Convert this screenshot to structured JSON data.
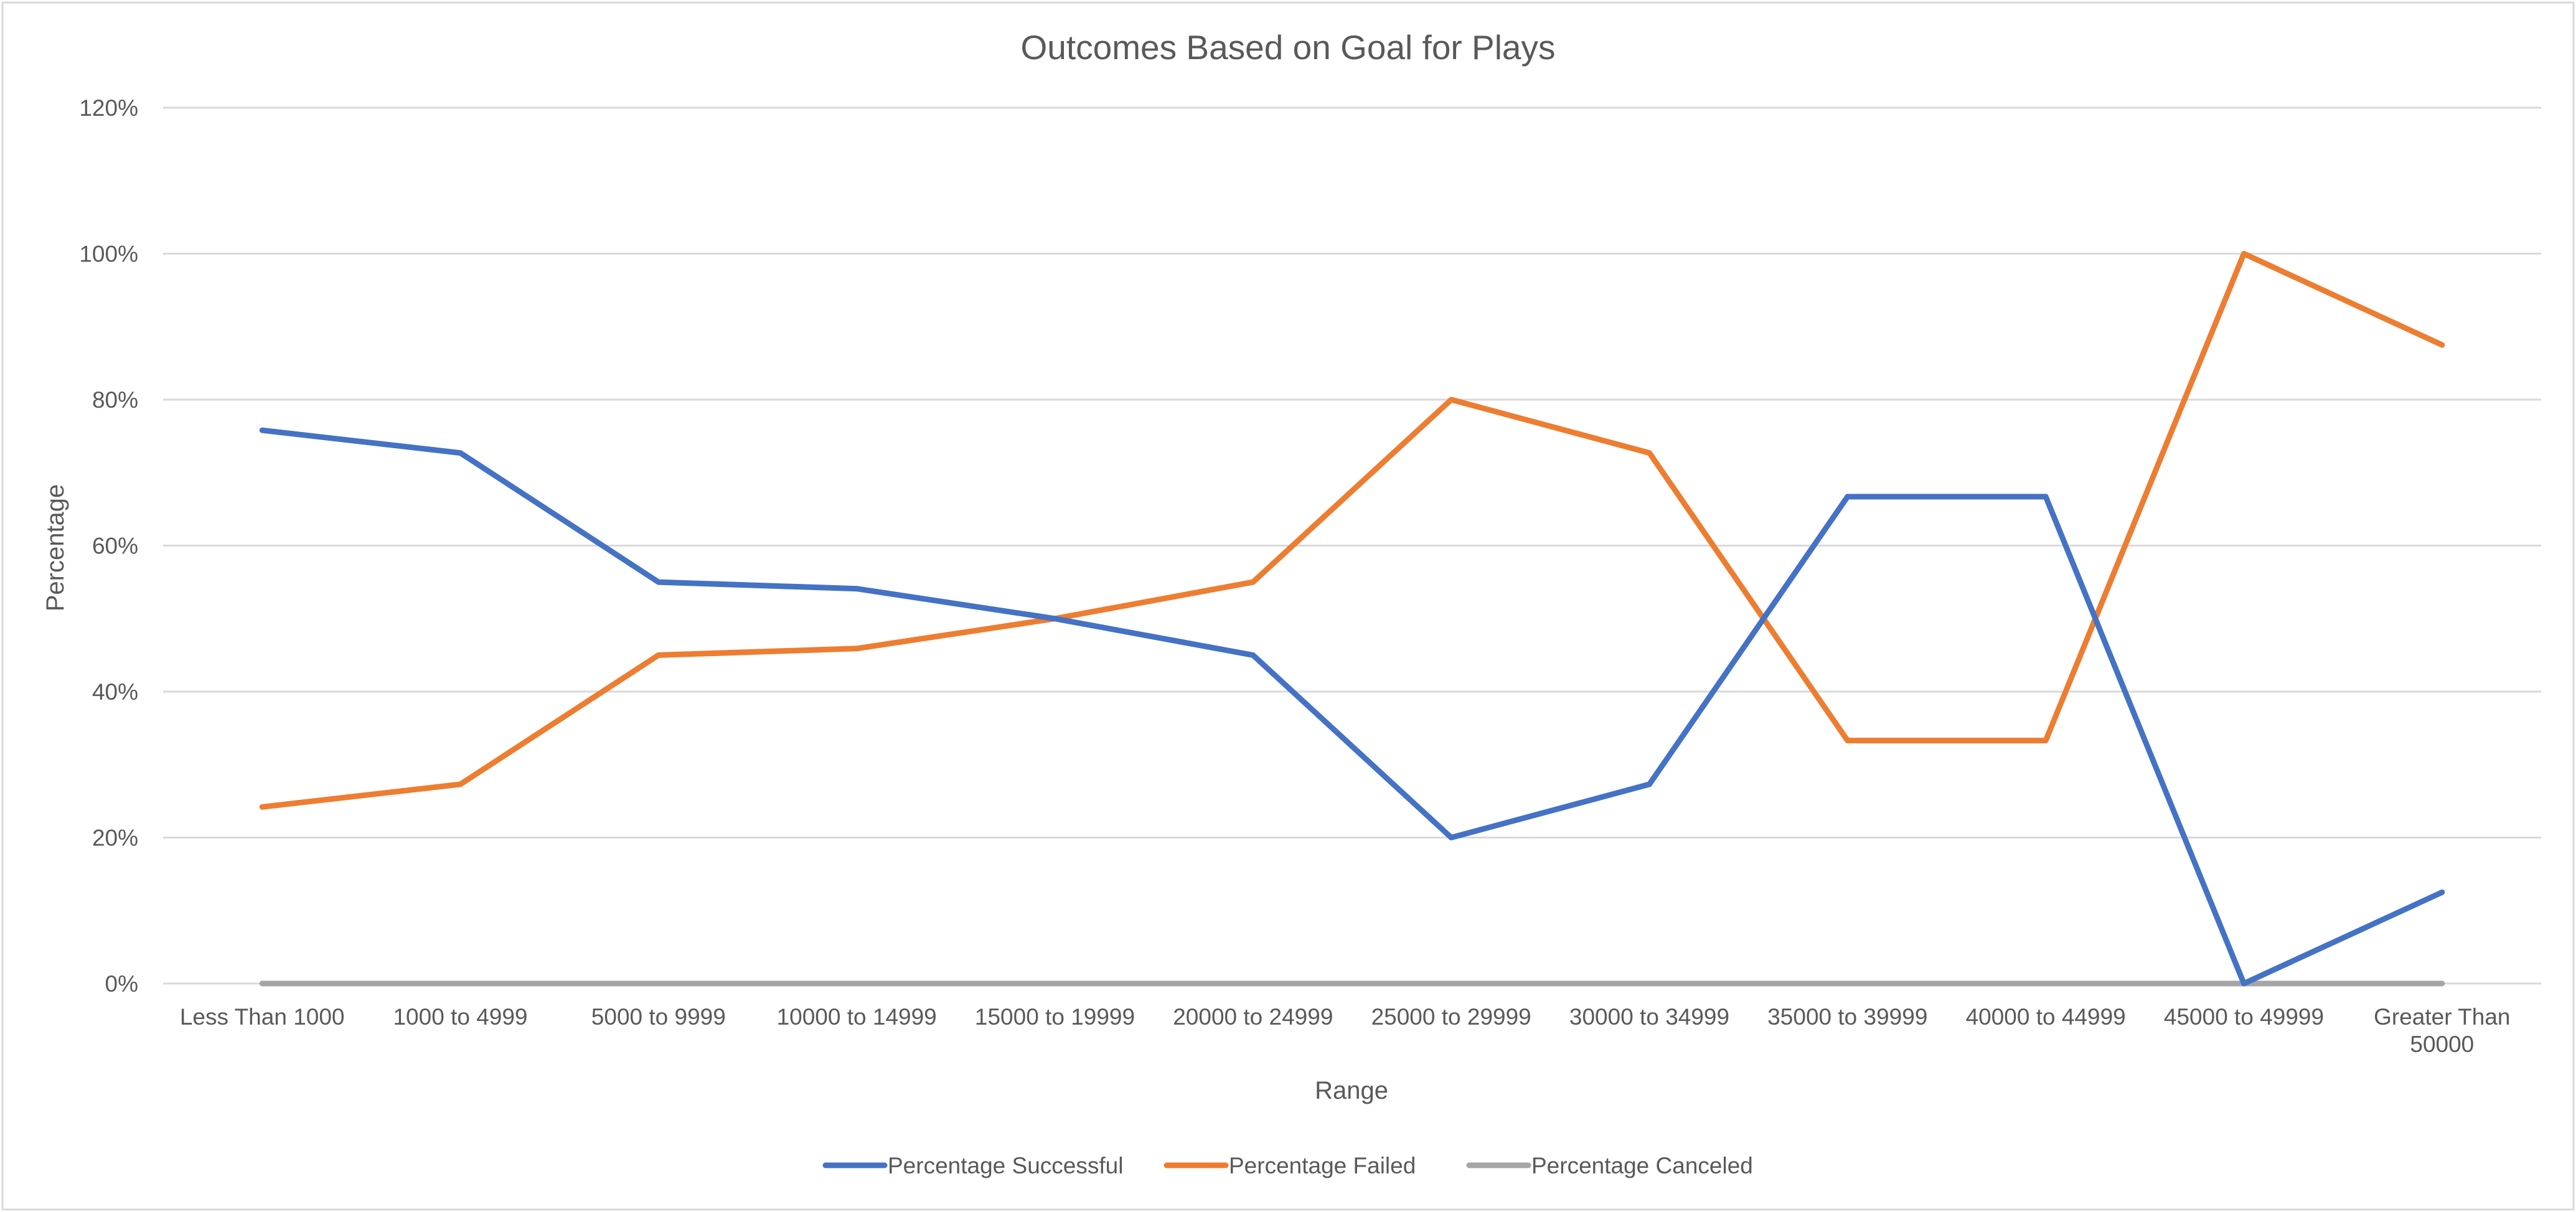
{
  "chart_data": {
    "type": "line",
    "title": "Outcomes Based on Goal for Plays",
    "xlabel": "Range",
    "ylabel": "Percentage",
    "ylim": [
      0,
      1.2
    ],
    "yticks": [
      0,
      0.2,
      0.4,
      0.6,
      0.8,
      1.0,
      1.2
    ],
    "ytick_labels": [
      "0%",
      "20%",
      "40%",
      "60%",
      "80%",
      "100%",
      "120%"
    ],
    "categories": [
      [
        "Less Than 1000"
      ],
      [
        "1000 to 4999"
      ],
      [
        "5000 to 9999"
      ],
      [
        "10000 to 14999"
      ],
      [
        "15000 to 19999"
      ],
      [
        "20000 to 24999"
      ],
      [
        "25000 to 29999"
      ],
      [
        "30000 to 34999"
      ],
      [
        "35000 to 39999"
      ],
      [
        "40000 to 44999"
      ],
      [
        "45000 to 49999"
      ],
      [
        "Greater Than",
        "50000"
      ]
    ],
    "series": [
      {
        "name": "Percentage Successful",
        "color": "#4472c4",
        "values": [
          0.758,
          0.727,
          0.55,
          0.541,
          0.5,
          0.45,
          0.2,
          0.273,
          0.667,
          0.667,
          0.0,
          0.125
        ]
      },
      {
        "name": "Percentage Failed",
        "color": "#ed7d31",
        "values": [
          0.242,
          0.273,
          0.45,
          0.459,
          0.5,
          0.55,
          0.8,
          0.727,
          0.333,
          0.333,
          1.0,
          0.875
        ]
      },
      {
        "name": "Percentage Canceled",
        "color": "#a5a5a5",
        "values": [
          0,
          0,
          0,
          0,
          0,
          0,
          0,
          0,
          0,
          0,
          0,
          0
        ]
      }
    ],
    "grid": true,
    "legend_position": "bottom"
  }
}
